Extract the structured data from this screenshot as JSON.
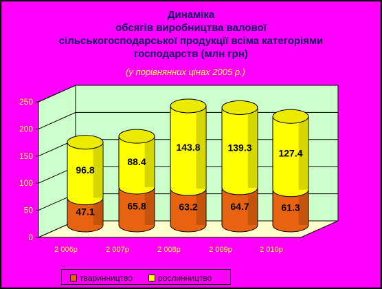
{
  "chart_data": {
    "type": "bar",
    "stacked": true,
    "title_lines": [
      "Динаміка",
      "обсягів виробництва валової",
      "сільськогосподарської продукції всіма категоріями",
      "господарств (млн грн)"
    ],
    "subtitle": "(у порівнянних цінах 2005 р.)",
    "categories": [
      "2 006р",
      "2 007р",
      "2 008р",
      "2 009р",
      "2 010р"
    ],
    "series": [
      {
        "name": "тваринництво",
        "values": [
          47.1,
          65.8,
          63.2,
          64.7,
          61.3
        ],
        "color": "#e8630f"
      },
      {
        "name": "рослинництво",
        "values": [
          96.8,
          88.4,
          143.8,
          139.3,
          127.4
        ],
        "color": "#ffff00"
      }
    ],
    "ylim": [
      0,
      250
    ],
    "yticks": [
      "0",
      "50",
      "100",
      "150",
      "200",
      "250"
    ],
    "grid": true,
    "legend_position": "bottom",
    "wall_color": "#ccffcc",
    "floor_color": "#ffffcc"
  }
}
